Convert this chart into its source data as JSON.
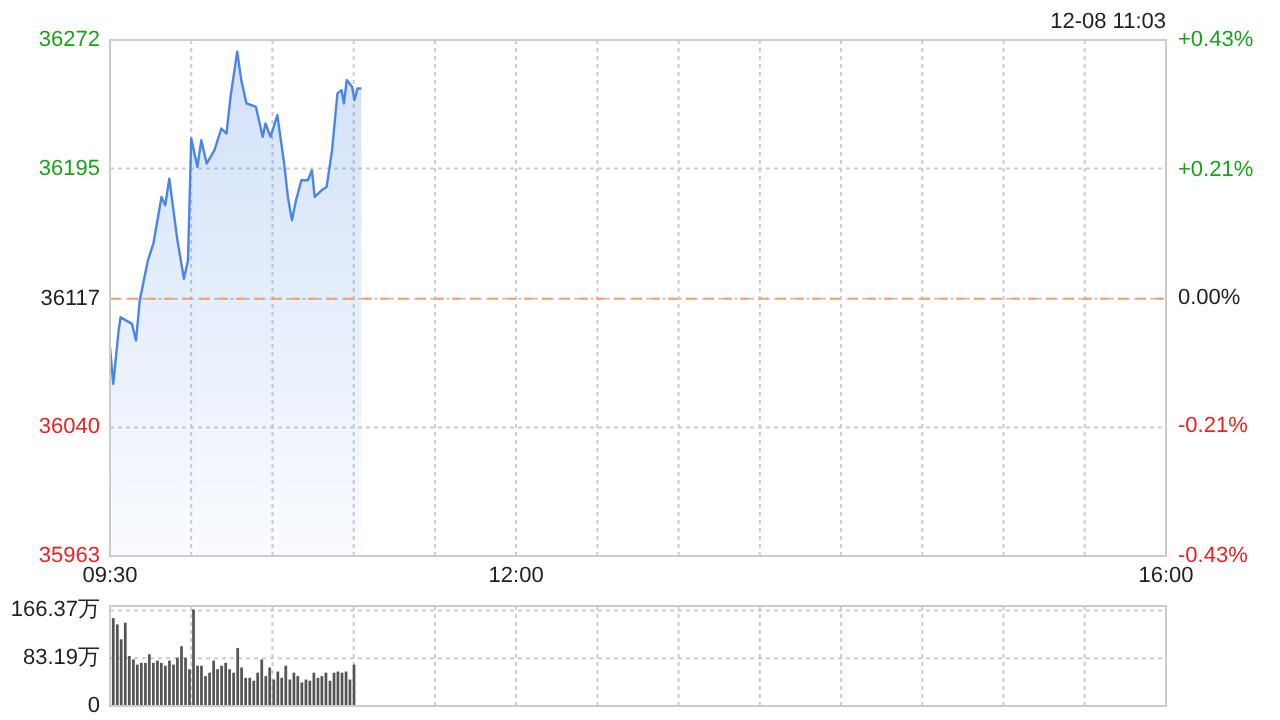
{
  "chart_data": [
    {
      "type": "area",
      "annotations": [
        "12-08 11:03"
      ],
      "x": [
        9.5,
        9.52,
        9.553,
        9.565,
        9.635,
        9.66,
        9.683,
        9.733,
        9.767,
        9.817,
        9.84,
        9.865,
        9.915,
        9.955,
        9.98,
        10.0,
        10.038,
        10.062,
        10.095,
        10.143,
        10.185,
        10.217,
        10.242,
        10.283,
        10.308,
        10.34,
        10.398,
        10.44,
        10.457,
        10.488,
        10.53,
        10.572,
        10.595,
        10.62,
        10.645,
        10.678,
        10.718,
        10.743,
        10.76,
        10.802,
        10.833,
        10.867,
        10.9,
        10.925,
        10.94,
        10.957,
        10.99,
        11.005,
        11.023,
        11.047
      ],
      "series": [
        {
          "color": "#4a86e8",
          "values": [
            36088,
            36066,
            36098,
            36106,
            36102,
            36092,
            36116,
            36140,
            36150,
            36178,
            36173,
            36189,
            36152,
            36129,
            36140,
            36213,
            36196,
            36212,
            36198,
            36206,
            36219,
            36216,
            36238,
            36265,
            36248,
            36234,
            36232,
            36214,
            36222,
            36214,
            36227,
            36198,
            36178,
            36164,
            36176,
            36188,
            36188,
            36194,
            36178,
            36182,
            36184,
            36206,
            36240,
            36242,
            36234,
            36248,
            36244,
            36236,
            36243,
            36243
          ]
        }
      ],
      "xlim": [
        9.5,
        16
      ],
      "xticks": [
        {
          "value": 9.5,
          "label": "09:30"
        },
        {
          "value": 10,
          "label": null
        },
        {
          "value": 10.5,
          "label": null
        },
        {
          "value": 11,
          "label": null
        },
        {
          "value": 11.5,
          "label": null
        },
        {
          "value": 12,
          "label": "12:00"
        },
        {
          "value": 12.5,
          "label": null
        },
        {
          "value": 13,
          "label": null
        },
        {
          "value": 13.5,
          "label": null
        },
        {
          "value": 14,
          "label": null
        },
        {
          "value": 14.5,
          "label": null
        },
        {
          "value": 15,
          "label": null
        },
        {
          "value": 15.5,
          "label": null
        },
        {
          "value": 16,
          "label": "16:00"
        }
      ],
      "ylim": [
        35963,
        36272
      ],
      "yticks": [
        35963,
        36040,
        36117,
        36195,
        36272
      ],
      "y2lim": [
        -0.43,
        0.43
      ],
      "y2ticks": [
        {
          "value": -0.43,
          "label": "-0.43%"
        },
        {
          "value": -0.213,
          "label": "-0.21%"
        },
        {
          "value": 0,
          "label": "0.00%"
        },
        {
          "value": 0.214,
          "label": "+0.21%"
        },
        {
          "value": 0.43,
          "label": "+0.43%"
        }
      ],
      "ref_lines": [
        {
          "axis": "y",
          "value": 36117,
          "color": "#f0a070",
          "line_style": "dashed"
        }
      ],
      "grid": true,
      "line_style": "solid"
    },
    {
      "type": "bar",
      "x": [
        9.52,
        9.545,
        9.569,
        9.594,
        9.619,
        9.644,
        9.668,
        9.693,
        9.718,
        9.742,
        9.767,
        9.792,
        9.816,
        9.841,
        9.866,
        9.891,
        9.915,
        9.94,
        9.965,
        9.989,
        10.014,
        10.039,
        10.063,
        10.088,
        10.113,
        10.138,
        10.162,
        10.187,
        10.212,
        10.236,
        10.261,
        10.286,
        10.31,
        10.335,
        10.36,
        10.385,
        10.409,
        10.434,
        10.459,
        10.483,
        10.508,
        10.533,
        10.557,
        10.582,
        10.607,
        10.632,
        10.656,
        10.681,
        10.706,
        10.73,
        10.755,
        10.78,
        10.804,
        10.829,
        10.854,
        10.879,
        10.903,
        10.928,
        10.953,
        10.977,
        11.002
      ],
      "series": [
        {
          "color": "#555555",
          "values": [
            153,
            142,
            116,
            145,
            87,
            81,
            72,
            75,
            75,
            90,
            75,
            79,
            75,
            70,
            79,
            72,
            84,
            104,
            84,
            64,
            168,
            70,
            70,
            52,
            58,
            79,
            64,
            70,
            75,
            64,
            58,
            101,
            67,
            49,
            49,
            44,
            58,
            81,
            52,
            67,
            46,
            60,
            49,
            70,
            46,
            58,
            52,
            41,
            46,
            44,
            58,
            49,
            52,
            58,
            44,
            58,
            60,
            58,
            60,
            46,
            72
          ]
        }
      ],
      "xlim": [
        9.5,
        16
      ],
      "xticks": [
        {
          "value": 9.5,
          "label": null
        },
        {
          "value": 10,
          "label": null
        },
        {
          "value": 10.5,
          "label": null
        },
        {
          "value": 11,
          "label": null
        },
        {
          "value": 11.5,
          "label": null
        },
        {
          "value": 12,
          "label": null
        },
        {
          "value": 12.5,
          "label": null
        },
        {
          "value": 13,
          "label": null
        },
        {
          "value": 13.5,
          "label": null
        },
        {
          "value": 14,
          "label": null
        },
        {
          "value": 14.5,
          "label": null
        },
        {
          "value": 15,
          "label": null
        },
        {
          "value": 15.5,
          "label": null
        },
        {
          "value": 16,
          "label": null
        }
      ],
      "ylim": [
        0,
        174
      ],
      "yticks": [
        0,
        {
          "value": 83.19,
          "label": "83.19万"
        },
        {
          "value": 166.37,
          "label": "166.37万"
        }
      ],
      "tick_labels": "y",
      "grid": true
    }
  ]
}
